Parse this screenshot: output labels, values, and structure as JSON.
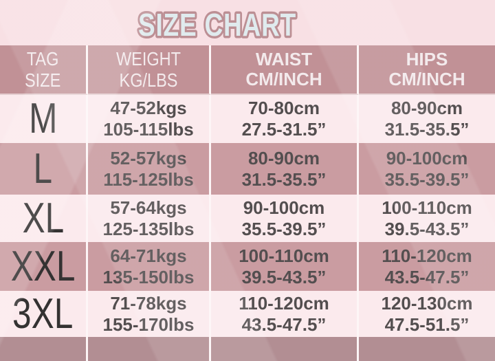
{
  "title": "SIZE CHART",
  "colors": {
    "page_bg": "#f8e0e4",
    "header_bg": "#c19196",
    "row_light_bg": "#fbeaed",
    "row_dark_bg": "#ca9ca1",
    "footer_band_bg": "#b28e93",
    "divider": "#fdf5f6",
    "title_fill": "#e0ebee",
    "title_outline": "#bc8f94",
    "value_text": "#534e4f",
    "size_text": "#343232",
    "header_text": "#f3eaec"
  },
  "chart_data": {
    "type": "table",
    "title": "SIZE CHART",
    "columns": [
      {
        "label": "TAG SIZE",
        "line1": "TAG",
        "line2": "SIZE"
      },
      {
        "label": "WEIGHT KG/LBS",
        "line1": "WEIGHT",
        "line2": "KG/LBS"
      },
      {
        "label": "WAIST CM/INCH",
        "line1": "WAIST",
        "line2": "CM/INCH"
      },
      {
        "label": "HIPS CM/INCH",
        "line1": "HIPS",
        "line2": "CM/INCH"
      }
    ],
    "rows": [
      {
        "tag_size": "M",
        "weight_kg": "47-52kgs",
        "weight_lbs": "105-115lbs",
        "waist_cm": "70-80cm",
        "waist_inch": "27.5-31.5”",
        "hips_cm": "80-90cm",
        "hips_inch": "31.5-35.5”"
      },
      {
        "tag_size": "L",
        "weight_kg": "52-57kgs",
        "weight_lbs": "115-125lbs",
        "waist_cm": "80-90cm",
        "waist_inch": "31.5-35.5”",
        "hips_cm": "90-100cm",
        "hips_inch": "35.5-39.5”"
      },
      {
        "tag_size": "XL",
        "weight_kg": "57-64kgs",
        "weight_lbs": "125-135lbs",
        "waist_cm": "90-100cm",
        "waist_inch": "35.5-39.5”",
        "hips_cm": "100-110cm",
        "hips_inch": "39.5-43.5”"
      },
      {
        "tag_size": "XXL",
        "weight_kg": "64-71kgs",
        "weight_lbs": "135-150lbs",
        "waist_cm": "100-110cm",
        "waist_inch": "39.5-43.5”",
        "hips_cm": "110-120cm",
        "hips_inch": "43.5-47.5”"
      },
      {
        "tag_size": "3XL",
        "weight_kg": "71-78kgs",
        "weight_lbs": "155-170lbs",
        "waist_cm": "110-120cm",
        "waist_inch": "43.5-47.5”",
        "hips_cm": "120-130cm",
        "hips_inch": "47.5-51.5”"
      }
    ]
  }
}
